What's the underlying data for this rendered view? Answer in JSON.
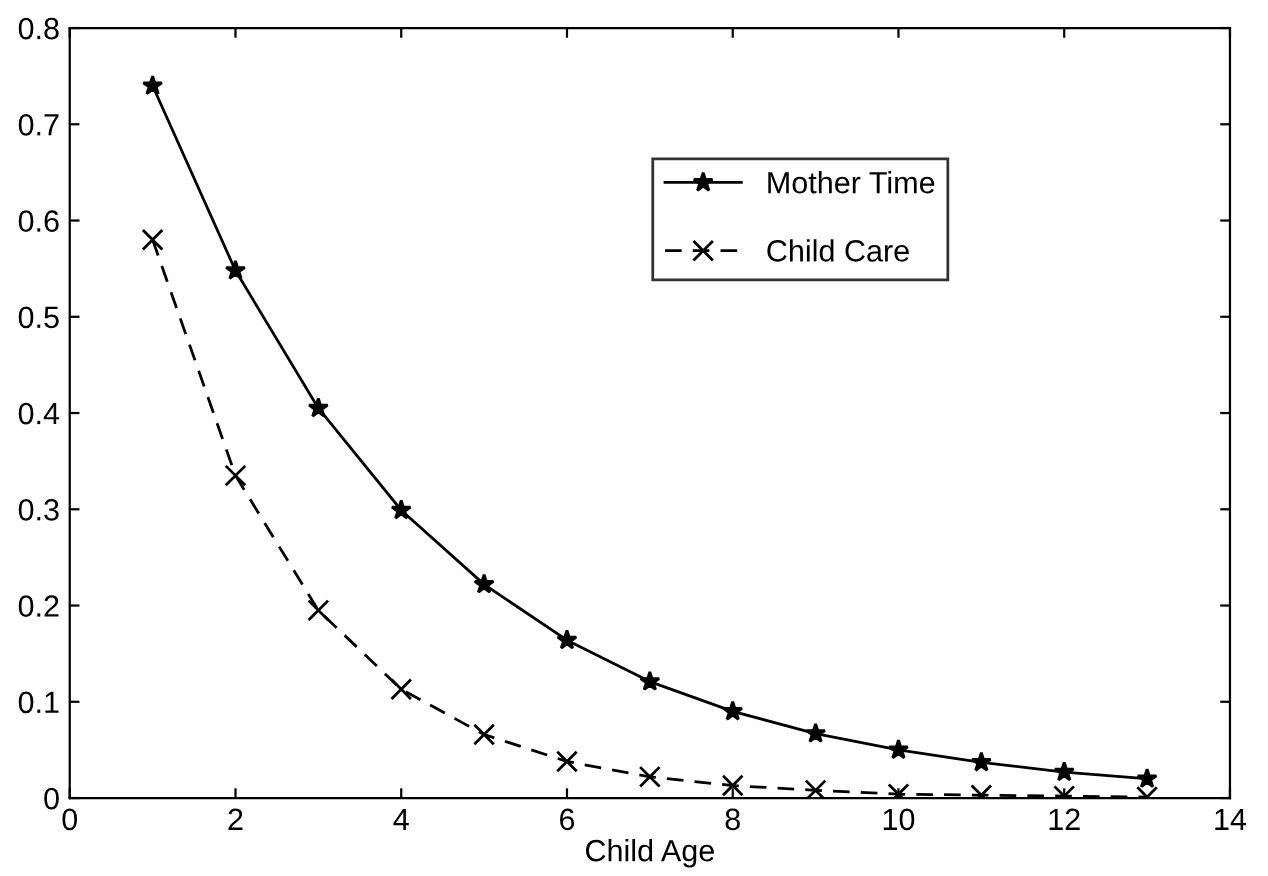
{
  "chart_data": {
    "type": "line",
    "xlabel": "Child Age",
    "x": [
      1,
      2,
      3,
      4,
      5,
      6,
      7,
      8,
      9,
      10,
      11,
      12,
      13
    ],
    "series": [
      {
        "name": "Mother Time",
        "color": "#000000",
        "marker": "star",
        "line_style": "solid",
        "values": [
          0.74,
          0.548,
          0.405,
          0.299,
          0.222,
          0.164,
          0.121,
          0.09,
          0.067,
          0.05,
          0.037,
          0.027,
          0.02
        ]
      },
      {
        "name": "Child Care",
        "color": "#000000",
        "marker": "cross",
        "line_style": "dashed",
        "values": [
          0.58,
          0.335,
          0.195,
          0.113,
          0.066,
          0.038,
          0.022,
          0.013,
          0.008,
          0.004,
          0.003,
          0.002,
          0.001
        ]
      }
    ],
    "xlim": [
      0,
      14
    ],
    "xticks": [
      0,
      2,
      4,
      6,
      8,
      10,
      12,
      14
    ],
    "ylim": [
      0,
      0.8
    ],
    "yticks": [
      0,
      0.1,
      0.2,
      0.3,
      0.4,
      0.5,
      0.6,
      0.7,
      0.8
    ],
    "grid": false,
    "legend": "top right"
  }
}
